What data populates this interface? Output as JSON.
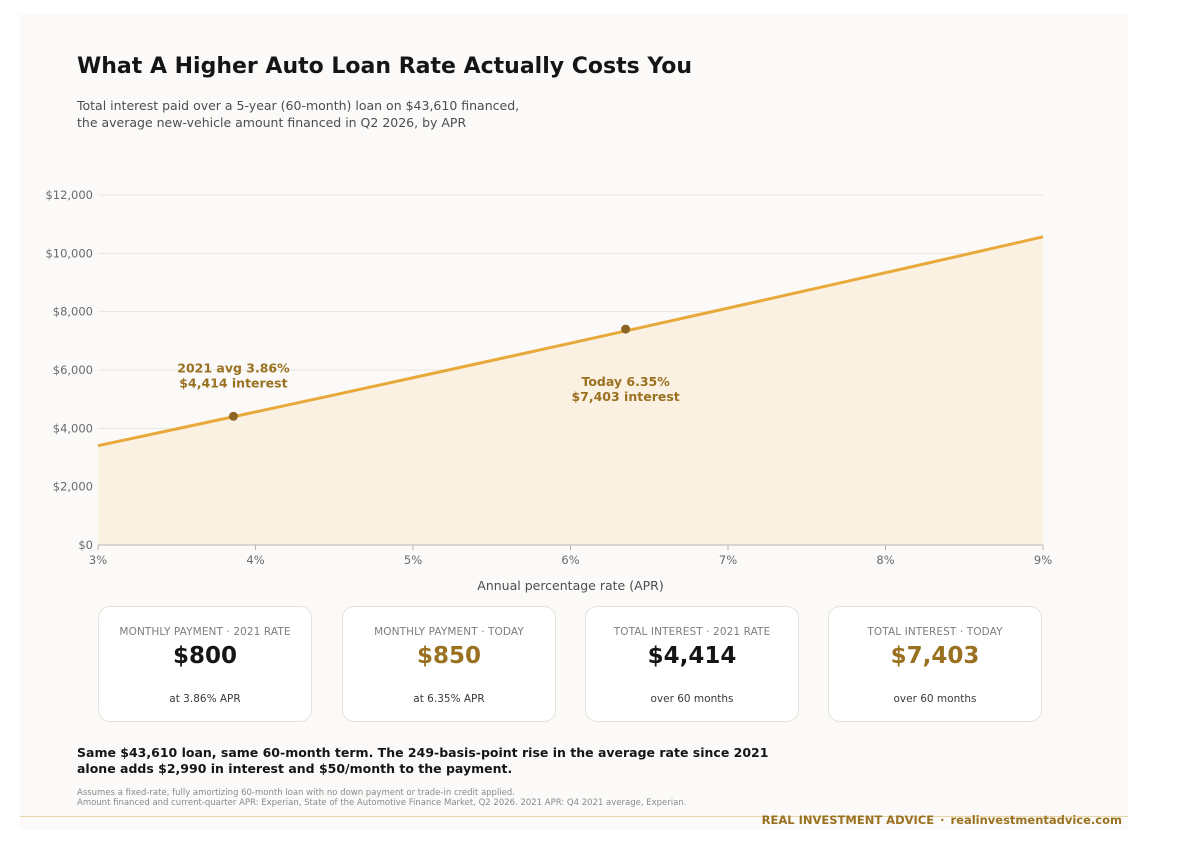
{
  "header": {
    "title": "What A Higher Auto Loan Rate Actually Costs You",
    "subtitle_lines": [
      "Total interest paid over a 5-year (60-month) loan on $43,610 financed,",
      "the average new-vehicle amount financed in Q2 2026, by APR"
    ]
  },
  "chart_data": {
    "type": "area",
    "title": "",
    "xlabel": "Annual percentage rate (APR)",
    "ylabel": "",
    "xlim": [
      3,
      9
    ],
    "ylim": [
      0,
      12000
    ],
    "x_ticks": [
      3,
      4,
      5,
      6,
      7,
      8,
      9
    ],
    "x_tick_labels": [
      "3%",
      "4%",
      "5%",
      "6%",
      "7%",
      "8%",
      "9%"
    ],
    "y_ticks": [
      0,
      2000,
      4000,
      6000,
      8000,
      10000,
      12000
    ],
    "y_tick_labels": [
      "$0",
      "$2,000",
      "$4,000",
      "$6,000",
      "$8,000",
      "$10,000",
      "$12,000"
    ],
    "grid": "horizontal",
    "series": [
      {
        "x": [
          3,
          3.5,
          4,
          4.5,
          5,
          5.5,
          6,
          6.5,
          7,
          7.5,
          8,
          8.5,
          9
        ],
        "y": [
          3405,
          3982,
          4562,
          5146,
          5734,
          6325,
          6920,
          7519,
          8121,
          8727,
          9336,
          9949,
          10566
        ]
      }
    ],
    "markers": [
      {
        "x": 3.86,
        "y": 4414,
        "label_lines": [
          "2021 avg  3.86%",
          "$4,414 interest"
        ]
      },
      {
        "x": 6.35,
        "y": 7403,
        "label_lines": [
          "Today  6.35%",
          "$7,403 interest"
        ]
      }
    ],
    "colors": {
      "line": "#e8a93a",
      "fill": "#fbf1e3",
      "marker": "#8c6423",
      "annotation": "#9a7120",
      "grid": "#e9e6e1"
    }
  },
  "cards": [
    {
      "label": "MONTHLY PAYMENT · 2021 RATE",
      "value": "$800",
      "note": "at 3.86% APR",
      "accent": false
    },
    {
      "label": "MONTHLY PAYMENT · TODAY",
      "value": "$850",
      "note": "at 6.35% APR",
      "accent": true
    },
    {
      "label": "TOTAL INTEREST · 2021 RATE",
      "value": "$4,414",
      "note": "over 60 months",
      "accent": false
    },
    {
      "label": "TOTAL INTEREST · TODAY",
      "value": "$7,403",
      "note": "over 60 months",
      "accent": true
    }
  ],
  "takeaway_lines": [
    "Same $43,610 loan, same 60-month term. The 249-basis-point rise in the average rate since 2021",
    "alone adds $2,990 in interest and $50/month to the payment."
  ],
  "footnote_lines": [
    "Assumes a fixed-rate, fully amortizing 60-month loan with no down payment or trade-in credit applied.",
    "Amount financed and current-quarter APR: Experian, State of the Automotive Finance Market, Q2 2026. 2021 APR: Q4 2021 average, Experian."
  ],
  "footer": {
    "brand": "REAL INVESTMENT ADVICE",
    "separator": "·",
    "site": "realinvestmentadvice.com"
  }
}
